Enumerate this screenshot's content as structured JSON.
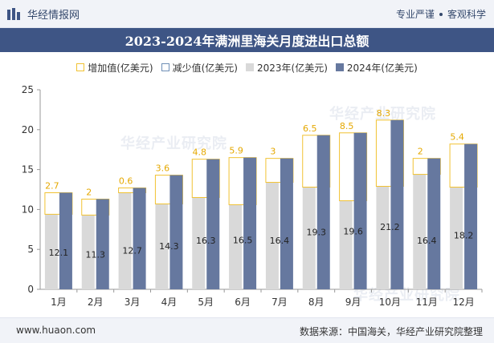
{
  "header": {
    "brand": "华经情报网",
    "slogan_left": "专业严谨",
    "slogan_right": "客观科学"
  },
  "watermark": "华经产业研究院",
  "chart_data": {
    "type": "bar",
    "title": "2023-2024年满洲里海关月度进出口总额",
    "legend": [
      "增加值(亿美元)",
      "减少值(亿美元)",
      "2023年(亿美元)",
      "2024年(亿美元)"
    ],
    "categories": [
      "1月",
      "2月",
      "3月",
      "4月",
      "5月",
      "6月",
      "7月",
      "8月",
      "9月",
      "10月",
      "11月",
      "12月"
    ],
    "series": [
      {
        "name": "2023年(亿美元)",
        "values": [
          9.4,
          9.3,
          12.1,
          10.7,
          11.5,
          10.6,
          13.4,
          12.8,
          11.1,
          12.9,
          14.4,
          12.8
        ]
      },
      {
        "name": "2024年(亿美元)",
        "values": [
          12.1,
          11.3,
          12.7,
          14.3,
          16.3,
          16.5,
          16.4,
          19.3,
          19.6,
          21.2,
          16.4,
          18.2
        ]
      },
      {
        "name": "增加值(亿美元)",
        "values": [
          2.7,
          2,
          0.6,
          3.6,
          4.8,
          5.9,
          3,
          6.5,
          8.5,
          8.3,
          2,
          5.4
        ]
      }
    ],
    "ylim": [
      0,
      25
    ],
    "yticks": [
      0,
      5,
      10,
      15,
      20,
      25
    ],
    "xlabel": "",
    "ylabel": ""
  },
  "colors": {
    "bar_2023": "#d9d9d9",
    "bar_2024": "#66789f",
    "increase": "#f1c232",
    "decrease": "#6f8fb6",
    "title_bg": "#3e5585"
  },
  "footer": {
    "url": "www.huaon.com",
    "source": "数据来源：中国海关，华经产业研究院整理"
  }
}
